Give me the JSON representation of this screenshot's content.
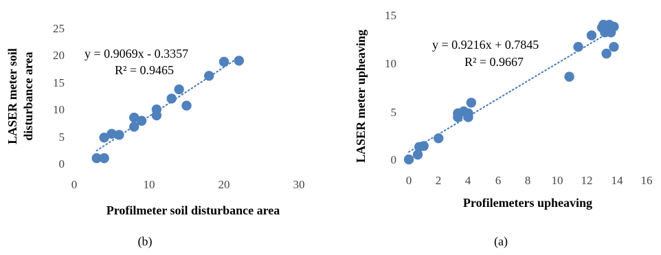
{
  "chart_data": [
    {
      "type": "scatter",
      "xlabel": "Profilmeter soil disturbance area",
      "ylabel_lines": [
        "LASER meter soil",
        "disturbance area"
      ],
      "xlim": [
        0,
        30
      ],
      "ylim": [
        0,
        25
      ],
      "xticks": [
        "0",
        "10",
        "20",
        "30"
      ],
      "yticks": [
        "0",
        "5",
        "10",
        "15",
        "20",
        "25"
      ],
      "grid": false,
      "trendline": {
        "type": "linear",
        "style": "dotted",
        "slope": 0.9069,
        "intercept": -0.3357
      },
      "equation": "y = 0.9069x - 0.3357",
      "r_squared": "R² = 0.9465",
      "caption": "(b)",
      "color": "#4f81bd",
      "series": [
        {
          "x": [
            3,
            4,
            4,
            5,
            6,
            8,
            8,
            9,
            11,
            11,
            13,
            14,
            15,
            18,
            20,
            22
          ],
          "y": [
            1,
            1,
            4.8,
            5.5,
            5.3,
            8.5,
            6.8,
            7.9,
            10,
            8.9,
            12,
            13.7,
            10.7,
            16.2,
            18.8,
            19
          ]
        }
      ]
    },
    {
      "type": "scatter",
      "xlabel": "Profilemeters upheaving",
      "ylabel_lines": [
        "LASER meter upheaving"
      ],
      "xlim": [
        0,
        16
      ],
      "ylim": [
        0,
        15
      ],
      "xticks": [
        "0",
        "2",
        "4",
        "6",
        "8",
        "10",
        "12",
        "14",
        "16"
      ],
      "yticks": [
        "0",
        "5",
        "10",
        "15"
      ],
      "grid": false,
      "trendline": {
        "type": "linear",
        "style": "dotted",
        "slope": 0.9216,
        "intercept": 0.7845
      },
      "equation": "y = 0.9216x + 0.7845",
      "r_squared": "R² = 0.9667",
      "caption": "(a)",
      "color": "#4f81bd",
      "series": [
        {
          "x": [
            0,
            0.6,
            0.7,
            1,
            2,
            3.3,
            3.3,
            3.7,
            4,
            4,
            4.2,
            10.8,
            11.4,
            12.3,
            13,
            13.1,
            13.2,
            13.3,
            13.3,
            13.5,
            13.6,
            13.8,
            13.8
          ],
          "y": [
            0,
            0.5,
            1.3,
            1.4,
            2.2,
            4.8,
            4.4,
            5.0,
            4.8,
            4.4,
            5.9,
            8.6,
            11.7,
            12.9,
            13.7,
            14.0,
            13.2,
            11.0,
            13.9,
            14.0,
            13.2,
            13.8,
            11.7
          ]
        }
      ]
    }
  ]
}
